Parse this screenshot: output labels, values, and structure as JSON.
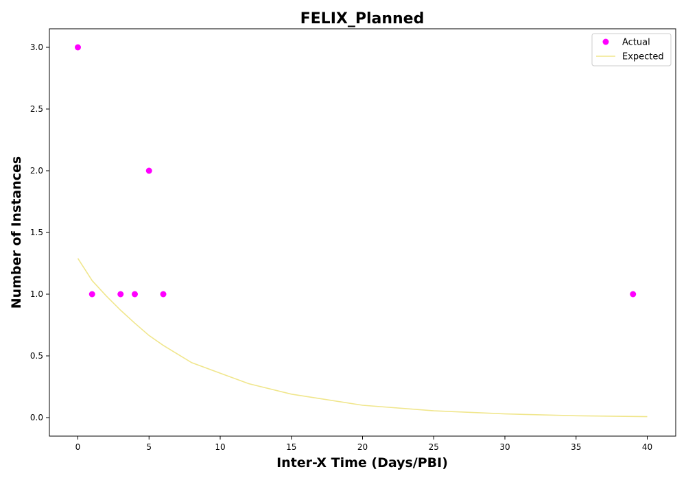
{
  "chart_data": {
    "type": "scatter",
    "title": "FELIX_Planned",
    "xlabel": "Inter-X Time (Days/PBI)",
    "ylabel": "Number of Instances",
    "xlim": [
      -2,
      42
    ],
    "ylim": [
      -0.15,
      3.15
    ],
    "xticks": [
      0,
      5,
      10,
      15,
      20,
      25,
      30,
      35,
      40
    ],
    "xtick_labels": [
      "0",
      "5",
      "10",
      "15",
      "20",
      "25",
      "30",
      "35",
      "40"
    ],
    "yticks": [
      0.0,
      0.5,
      1.0,
      1.5,
      2.0,
      2.5,
      3.0
    ],
    "ytick_labels": [
      "0.0",
      "0.5",
      "1.0",
      "1.5",
      "2.0",
      "2.5",
      "3.0"
    ],
    "grid": false,
    "legend_position": "top-right",
    "series": [
      {
        "name": "Actual",
        "kind": "scatter",
        "color": "#ff00ff",
        "x": [
          0,
          1,
          3,
          4,
          5,
          6,
          39
        ],
        "y": [
          3,
          1,
          1,
          1,
          2,
          1,
          1
        ]
      },
      {
        "name": "Expected",
        "kind": "line",
        "color": "#f0e68c",
        "x": [
          0,
          1,
          2,
          3,
          4,
          5,
          6,
          8,
          10,
          12,
          15,
          20,
          25,
          30,
          35,
          40
        ],
        "y": [
          1.29,
          1.11,
          0.985,
          0.87,
          0.765,
          0.665,
          0.585,
          0.445,
          0.36,
          0.275,
          0.19,
          0.1,
          0.055,
          0.03,
          0.015,
          0.008
        ]
      }
    ]
  }
}
